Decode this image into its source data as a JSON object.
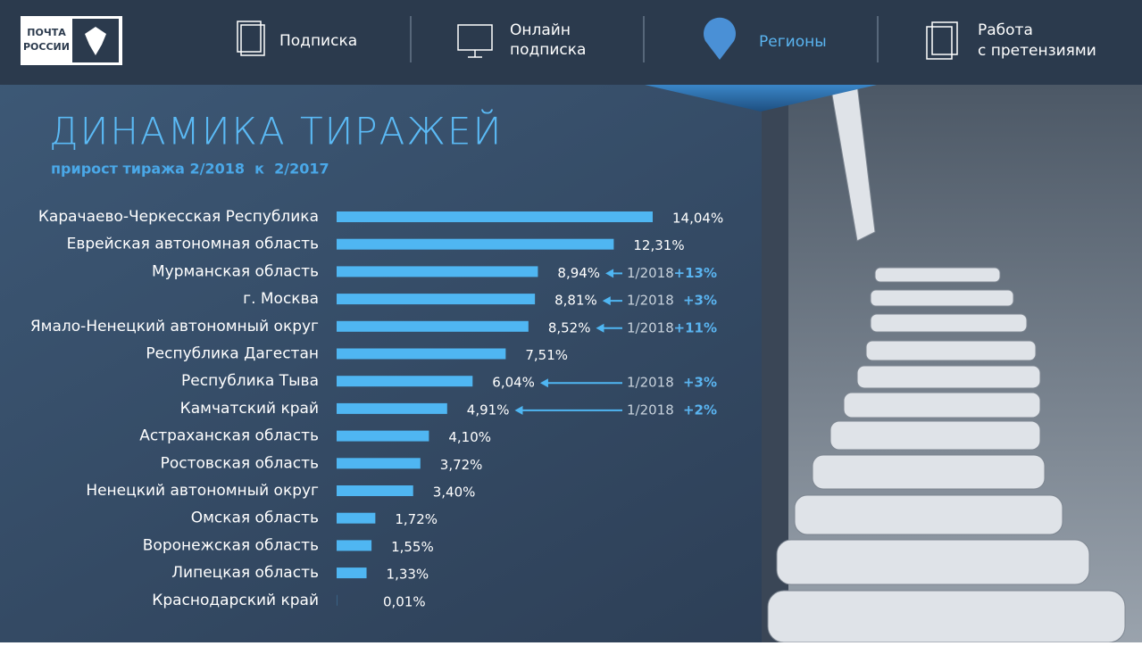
{
  "logo": [
    "ПОЧТА",
    "РОССИИ"
  ],
  "nav": [
    {
      "lines": [
        "Подписка"
      ]
    },
    {
      "lines": [
        "Онлайн",
        "подписка"
      ]
    },
    {
      "lines": [
        "Регионы"
      ]
    },
    {
      "lines": [
        "Работа",
        "с претензиями"
      ]
    }
  ],
  "chart_data": {
    "type": "bar",
    "orientation": "horizontal",
    "title": "ДИНАМИКА ТИРАЖЕЙ",
    "subtitle": "прирост тиража 2/2018  к  2/2017",
    "color": "#4fb6f2",
    "categories": [
      "Карачаево-Черкесская Республика",
      "Еврейская автономная область",
      "Мурманская область",
      "г. Москва",
      "Ямало-Ненецкий автономный округ",
      "Республика Дагестан",
      "Республика Тыва",
      "Камчатский край",
      "Астраханская область",
      "Ростовская область",
      "Ненецкий автономный округ",
      "Омская область",
      "Воронежская область",
      "Липецкая область",
      "Краснодарский край"
    ],
    "values": [
      14.04,
      12.31,
      8.94,
      8.81,
      8.52,
      7.51,
      6.04,
      4.91,
      4.1,
      3.72,
      3.4,
      1.72,
      1.55,
      1.33,
      0.01
    ],
    "value_labels": [
      "14,04%",
      "12,31%",
      "8,94%",
      "8,81%",
      "8,52%",
      "7,51%",
      "6,04%",
      "4,91%",
      "4,10%",
      "3,72%",
      "3,40%",
      "1,72%",
      "1,55%",
      "1,33%",
      "0,01%"
    ],
    "annotations": [
      null,
      null,
      {
        "period": "1/2018",
        "change": "+13%"
      },
      {
        "period": "1/2018",
        "change": "+3%"
      },
      {
        "period": "1/2018",
        "change": "+11%"
      },
      null,
      {
        "period": "1/2018",
        "change": "+3%"
      },
      {
        "period": "1/2018",
        "change": "+2%"
      },
      null,
      null,
      null,
      null,
      null,
      null,
      null
    ]
  }
}
